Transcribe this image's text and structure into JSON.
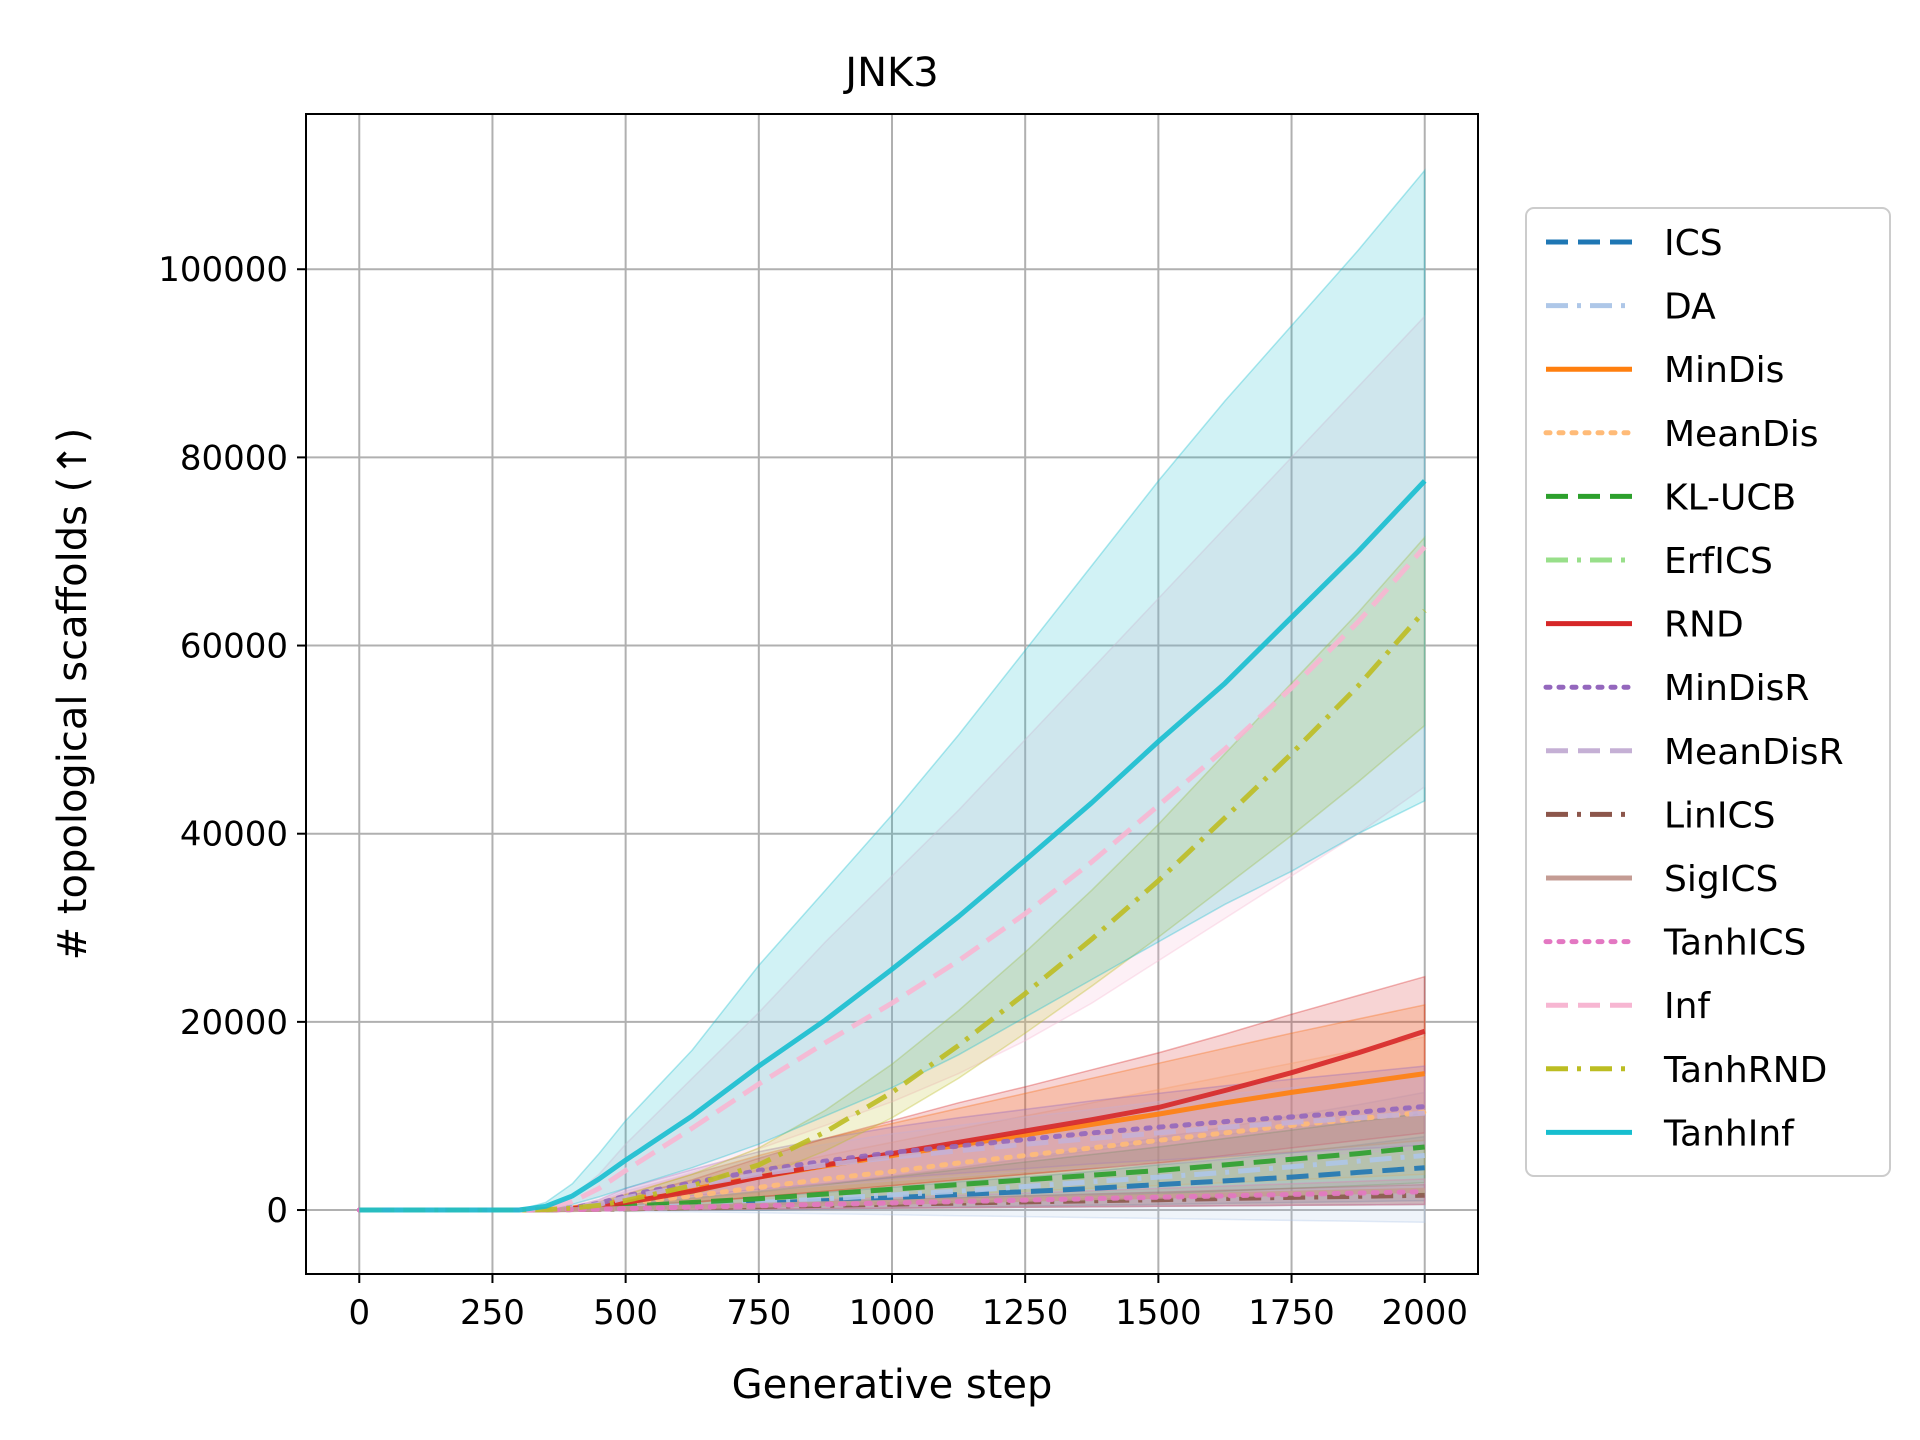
{
  "chart_data": {
    "type": "line",
    "title": "JNK3",
    "xlabel": "Generative step",
    "ylabel": "# topological scaffolds (↑)",
    "xlim": [
      -100,
      2100
    ],
    "ylim": [
      -6800,
      116500
    ],
    "xticks": [
      0,
      250,
      500,
      750,
      1000,
      1250,
      1500,
      1750,
      2000
    ],
    "xtick_labels": [
      "0",
      "250",
      "500",
      "750",
      "1000",
      "1250",
      "1500",
      "1750",
      "2000"
    ],
    "yticks": [
      0,
      20000,
      40000,
      60000,
      80000,
      100000
    ],
    "ytick_labels": [
      "0",
      "20000",
      "40000",
      "60000",
      "80000",
      "100000"
    ],
    "grid": true,
    "legend_position": "outside-right",
    "x": [
      0,
      250,
      300,
      350,
      400,
      450,
      500,
      625,
      750,
      875,
      1000,
      1125,
      1250,
      1375,
      1500,
      1625,
      1750,
      1875,
      2000
    ],
    "series": [
      {
        "name": "ICS",
        "color": "#1f77b4",
        "style": "dashed",
        "values": [
          0,
          0,
          0,
          20,
          80,
          150,
          250,
          450,
          700,
          1000,
          1300,
          1650,
          1950,
          2300,
          2700,
          3100,
          3500,
          4000,
          4500
        ],
        "lower": [
          0,
          0,
          0,
          0,
          0,
          0,
          0,
          0,
          0,
          100,
          200,
          300,
          400,
          500,
          600,
          700,
          800,
          900,
          1000
        ],
        "upper": [
          0,
          0,
          0,
          60,
          160,
          300,
          500,
          900,
          1400,
          1900,
          2400,
          3000,
          3500,
          4100,
          4800,
          5400,
          6100,
          6900,
          7800
        ]
      },
      {
        "name": "DA",
        "color": "#aec7e8",
        "style": "dashdot",
        "values": [
          0,
          0,
          0,
          20,
          80,
          150,
          250,
          500,
          800,
          1200,
          1600,
          2000,
          2500,
          3000,
          3500,
          4000,
          4600,
          5200,
          5800
        ],
        "lower": [
          0,
          0,
          0,
          0,
          -50,
          -100,
          -150,
          -200,
          -300,
          -400,
          -500,
          -600,
          -700,
          -800,
          -900,
          -1000,
          -1100,
          -1200,
          -1300
        ],
        "upper": [
          0,
          0,
          0,
          60,
          200,
          400,
          650,
          1200,
          1900,
          2700,
          3600,
          4500,
          5500,
          6600,
          7700,
          8800,
          10000,
          11200,
          12500
        ]
      },
      {
        "name": "MinDis",
        "color": "#ff7f0e",
        "style": "solid",
        "values": [
          0,
          0,
          0,
          50,
          200,
          500,
          1000,
          2200,
          3500,
          4700,
          5800,
          6900,
          8000,
          9100,
          10200,
          11400,
          12500,
          13500,
          14500
        ],
        "lower": [
          0,
          0,
          0,
          0,
          50,
          150,
          300,
          800,
          1400,
          2000,
          2600,
          3200,
          3800,
          4400,
          5000,
          5600,
          6200,
          6800,
          7400
        ],
        "upper": [
          0,
          0,
          0,
          100,
          400,
          900,
          1700,
          3800,
          5800,
          7600,
          9200,
          10800,
          12400,
          14000,
          15600,
          17200,
          18800,
          20300,
          21800
        ]
      },
      {
        "name": "MeanDis",
        "color": "#ffbb78",
        "style": "dotted",
        "values": [
          0,
          0,
          0,
          40,
          150,
          350,
          700,
          1500,
          2400,
          3300,
          4100,
          5000,
          5800,
          6600,
          7400,
          8200,
          9000,
          9700,
          10400
        ],
        "lower": [
          0,
          0,
          0,
          0,
          30,
          100,
          200,
          500,
          800,
          1100,
          1400,
          1700,
          2000,
          2300,
          2600,
          2900,
          3200,
          3500,
          3800
        ],
        "upper": [
          0,
          0,
          0,
          80,
          300,
          700,
          1300,
          2800,
          4300,
          5800,
          7200,
          8600,
          10000,
          11400,
          12800,
          14200,
          15600,
          17000,
          18400
        ]
      },
      {
        "name": "KL-UCB",
        "color": "#2ca02c",
        "style": "dashed",
        "values": [
          0,
          0,
          0,
          30,
          100,
          250,
          400,
          800,
          1200,
          1700,
          2200,
          2700,
          3200,
          3700,
          4200,
          4800,
          5400,
          6000,
          6700
        ],
        "lower": [
          0,
          0,
          0,
          0,
          0,
          50,
          100,
          300,
          500,
          700,
          900,
          1100,
          1300,
          1500,
          1700,
          2000,
          2300,
          2600,
          2900
        ],
        "upper": [
          0,
          0,
          0,
          60,
          200,
          450,
          700,
          1300,
          2000,
          2700,
          3500,
          4300,
          5100,
          5900,
          6700,
          7600,
          8500,
          9400,
          10300
        ]
      },
      {
        "name": "ErfICS",
        "color": "#98df8a",
        "style": "dashdot",
        "values": [
          0,
          0,
          0,
          10,
          40,
          80,
          120,
          250,
          400,
          550,
          700,
          850,
          1000,
          1150,
          1300,
          1450,
          1600,
          1750,
          1900
        ],
        "lower": [
          0,
          0,
          0,
          0,
          0,
          0,
          0,
          50,
          100,
          150,
          200,
          250,
          300,
          350,
          400,
          450,
          500,
          550,
          600
        ],
        "upper": [
          0,
          0,
          0,
          30,
          90,
          160,
          250,
          500,
          750,
          1000,
          1250,
          1500,
          1750,
          2000,
          2250,
          2500,
          2750,
          3000,
          3300
        ]
      },
      {
        "name": "RND",
        "color": "#d62728",
        "style": "solid",
        "values": [
          0,
          0,
          0,
          30,
          150,
          400,
          800,
          2000,
          3500,
          4800,
          6000,
          7200,
          8400,
          9600,
          10900,
          12700,
          14600,
          16700,
          19000
        ],
        "lower": [
          0,
          0,
          0,
          0,
          50,
          150,
          300,
          800,
          1400,
          2000,
          2600,
          3200,
          3800,
          4400,
          5000,
          5800,
          6600,
          7400,
          8200
        ],
        "upper": [
          0,
          0,
          0,
          80,
          300,
          700,
          1400,
          3200,
          5500,
          7600,
          9500,
          11400,
          13100,
          14900,
          16700,
          18700,
          20800,
          22800,
          24800
        ]
      },
      {
        "name": "MinDisR",
        "color": "#9467bd",
        "style": "dotted",
        "values": [
          0,
          0,
          0,
          50,
          250,
          700,
          1500,
          2900,
          4200,
          5200,
          6100,
          6800,
          7500,
          8200,
          8800,
          9400,
          9900,
          10400,
          11000
        ],
        "lower": [
          0,
          0,
          0,
          0,
          100,
          300,
          700,
          1500,
          2200,
          2800,
          3400,
          3900,
          4400,
          4900,
          5300,
          5700,
          6100,
          6500,
          6900
        ],
        "upper": [
          0,
          0,
          0,
          100,
          400,
          1100,
          2300,
          4300,
          6200,
          7600,
          8800,
          9800,
          10700,
          11600,
          12400,
          13200,
          13900,
          14600,
          15300
        ]
      },
      {
        "name": "MeanDisR",
        "color": "#c5b0d5",
        "style": "dashed",
        "values": [
          0,
          0,
          0,
          40,
          200,
          600,
          1300,
          2600,
          3800,
          4800,
          5600,
          6300,
          7000,
          7600,
          8200,
          8800,
          9300,
          9800,
          10300
        ],
        "lower": [
          0,
          0,
          0,
          0,
          80,
          250,
          600,
          1300,
          2000,
          2600,
          3100,
          3600,
          4100,
          4500,
          4900,
          5300,
          5700,
          6100,
          6500
        ],
        "upper": [
          0,
          0,
          0,
          80,
          350,
          950,
          2000,
          3900,
          5600,
          7000,
          8100,
          9000,
          9900,
          10700,
          11500,
          12300,
          13000,
          13700,
          14400
        ]
      },
      {
        "name": "LinICS",
        "color": "#8c564b",
        "style": "dashdot",
        "values": [
          0,
          0,
          0,
          10,
          40,
          80,
          120,
          250,
          380,
          500,
          620,
          740,
          860,
          980,
          1100,
          1220,
          1340,
          1460,
          1580
        ],
        "lower": [
          0,
          0,
          0,
          0,
          0,
          0,
          0,
          50,
          100,
          150,
          200,
          250,
          300,
          350,
          400,
          450,
          500,
          550,
          600
        ],
        "upper": [
          0,
          0,
          0,
          30,
          90,
          160,
          250,
          500,
          700,
          900,
          1100,
          1300,
          1500,
          1700,
          1900,
          2100,
          2300,
          2500,
          2700
        ]
      },
      {
        "name": "SigICS",
        "color": "#c49c94",
        "style": "solid",
        "values": [
          0,
          0,
          0,
          10,
          50,
          100,
          160,
          330,
          500,
          660,
          820,
          980,
          1140,
          1300,
          1460,
          1620,
          1780,
          1940,
          2100
        ],
        "lower": [
          0,
          0,
          0,
          0,
          0,
          0,
          0,
          50,
          100,
          150,
          200,
          250,
          300,
          350,
          400,
          450,
          500,
          550,
          600
        ],
        "upper": [
          0,
          0,
          0,
          40,
          130,
          280,
          500,
          1200,
          2000,
          2800,
          3600,
          4500,
          5400,
          6300,
          7200,
          8000,
          8800,
          9400,
          10000
        ]
      },
      {
        "name": "TanhICS",
        "color": "#e377c2",
        "style": "dotted",
        "values": [
          0,
          0,
          0,
          10,
          40,
          90,
          150,
          300,
          450,
          600,
          750,
          900,
          1050,
          1200,
          1350,
          1500,
          1650,
          1800,
          1950
        ],
        "lower": [
          0,
          0,
          0,
          0,
          0,
          0,
          0,
          50,
          100,
          150,
          200,
          250,
          300,
          350,
          400,
          450,
          500,
          550,
          600
        ],
        "upper": [
          0,
          0,
          0,
          30,
          90,
          170,
          280,
          550,
          800,
          1050,
          1300,
          1550,
          1800,
          2050,
          2300,
          2550,
          2800,
          3050,
          3300
        ]
      },
      {
        "name": "Inf",
        "color": "#f7b6d2",
        "style": "dashed",
        "values": [
          0,
          0,
          0,
          200,
          900,
          2300,
          4200,
          8700,
          13400,
          17800,
          22000,
          26500,
          31500,
          37000,
          43000,
          49000,
          55500,
          62500,
          70500
        ],
        "lower": [
          0,
          0,
          0,
          80,
          400,
          1000,
          1800,
          4000,
          6500,
          9000,
          11500,
          14500,
          18000,
          22000,
          26500,
          31000,
          35500,
          40000,
          45000
        ],
        "upper": [
          0,
          0,
          0,
          350,
          1500,
          3800,
          7000,
          14000,
          21000,
          28500,
          35500,
          42500,
          50000,
          57500,
          65000,
          72500,
          80000,
          87500,
          95000
        ]
      },
      {
        "name": "TanhRND",
        "color": "#bcbd22",
        "style": "dashdot",
        "values": [
          0,
          0,
          0,
          40,
          200,
          500,
          1000,
          2600,
          4800,
          8300,
          12500,
          17500,
          23000,
          28800,
          35000,
          41700,
          48500,
          55700,
          63700
        ],
        "lower": [
          0,
          0,
          0,
          0,
          100,
          300,
          600,
          1700,
          3400,
          6300,
          9800,
          14000,
          18800,
          23800,
          29000,
          34400,
          39800,
          45500,
          51500
        ],
        "upper": [
          0,
          0,
          0,
          80,
          350,
          800,
          1600,
          3800,
          6600,
          10600,
          15500,
          21200,
          27400,
          34000,
          41000,
          48500,
          56000,
          63500,
          71500
        ]
      },
      {
        "name": "TanhInf",
        "color": "#17becf",
        "style": "solid",
        "values": [
          0,
          0,
          0,
          400,
          1500,
          3300,
          5300,
          10000,
          15300,
          20200,
          25600,
          31200,
          37200,
          43300,
          49800,
          56000,
          63000,
          70000,
          77500
        ],
        "lower": [
          0,
          0,
          0,
          100,
          600,
          1400,
          2300,
          4500,
          7000,
          10000,
          13000,
          16500,
          20500,
          24500,
          28500,
          32500,
          36000,
          40000,
          43500
        ],
        "upper": [
          0,
          0,
          0,
          800,
          2800,
          6000,
          9500,
          17000,
          26000,
          34000,
          42000,
          50500,
          59500,
          68500,
          77500,
          86000,
          94000,
          102000,
          110500
        ]
      }
    ]
  }
}
